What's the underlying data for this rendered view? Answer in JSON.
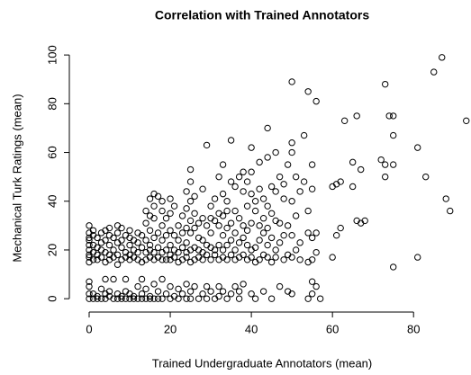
{
  "chart_data": {
    "type": "scatter",
    "title": "Correlation with Trained Annotators",
    "x_label": "Trained Undergraduate Annotators (mean)",
    "y_label": "Mechanical Turk Ratings (mean)",
    "color": "#000000",
    "xlim": [
      -4,
      93.5
    ],
    "ylim": [
      -4,
      103
    ],
    "xticks": [
      0,
      20,
      40,
      60,
      80
    ],
    "yticks": [
      0,
      20,
      40,
      60,
      80,
      100
    ],
    "x": [
      0,
      0,
      0,
      0,
      0,
      0,
      0,
      0,
      0,
      0,
      0,
      0,
      0,
      1,
      1,
      1,
      1,
      1,
      1,
      1,
      2,
      2,
      2,
      2,
      2,
      2,
      3,
      3,
      3,
      3,
      3,
      3,
      4,
      4,
      4,
      4,
      4,
      4,
      4,
      5,
      5,
      5,
      5,
      5,
      5,
      5,
      6,
      6,
      6,
      6,
      6,
      7,
      7,
      7,
      7,
      7,
      7,
      7,
      8,
      8,
      8,
      8,
      8,
      8,
      9,
      9,
      9,
      9,
      9,
      9,
      10,
      10,
      10,
      10,
      10,
      10,
      10,
      11,
      11,
      11,
      11,
      11,
      12,
      12,
      12,
      12,
      12,
      12,
      13,
      13,
      13,
      13,
      13,
      13,
      14,
      14,
      14,
      14,
      14,
      14,
      14,
      15,
      15,
      15,
      15,
      15,
      15,
      15,
      15,
      16,
      16,
      16,
      16,
      16,
      16,
      16,
      16,
      17,
      17,
      17,
      17,
      17,
      17,
      18,
      18,
      18,
      18,
      18,
      18,
      18,
      18,
      19,
      19,
      19,
      19,
      19,
      20,
      20,
      20,
      20,
      20,
      20,
      20,
      20,
      21,
      21,
      21,
      21,
      21,
      22,
      22,
      22,
      22,
      22,
      22,
      23,
      23,
      23,
      23,
      23,
      24,
      24,
      24,
      24,
      24,
      24,
      24,
      24,
      25,
      25,
      25,
      25,
      25,
      25,
      25,
      25,
      25,
      26,
      26,
      26,
      26,
      26,
      26,
      27,
      27,
      27,
      27,
      27,
      28,
      28,
      28,
      28,
      28,
      28,
      29,
      29,
      29,
      29,
      29,
      29,
      30,
      30,
      30,
      30,
      30,
      30,
      31,
      31,
      31,
      31,
      31,
      32,
      32,
      32,
      32,
      32,
      32,
      32,
      33,
      33,
      33,
      33,
      33,
      33,
      33,
      34,
      34,
      34,
      34,
      34,
      34,
      35,
      35,
      35,
      35,
      35,
      35,
      36,
      36,
      36,
      36,
      36,
      36,
      37,
      37,
      37,
      37,
      37,
      37,
      38,
      38,
      38,
      38,
      38,
      38,
      39,
      39,
      39,
      39,
      39,
      40,
      40,
      40,
      40,
      40,
      40,
      40,
      41,
      41,
      41,
      41,
      41,
      42,
      42,
      42,
      42,
      42,
      43,
      43,
      43,
      43,
      43,
      44,
      44,
      44,
      44,
      44,
      44,
      45,
      45,
      45,
      45,
      45,
      46,
      46,
      46,
      46,
      46,
      47,
      47,
      47,
      47,
      48,
      48,
      48,
      48,
      49,
      49,
      49,
      49,
      50,
      50,
      50,
      50,
      50,
      50,
      50,
      51,
      51,
      51,
      52,
      52,
      52,
      53,
      53,
      54,
      54,
      54,
      54,
      54,
      55,
      55,
      55,
      55,
      55,
      55,
      56,
      56,
      56,
      56,
      57,
      60,
      60,
      61,
      61,
      62,
      62,
      63,
      65,
      65,
      66,
      66,
      67,
      67,
      68,
      72,
      73,
      73,
      73,
      74,
      75,
      75,
      75,
      75,
      81,
      81,
      83,
      85,
      87,
      88,
      89,
      93
    ],
    "values": [
      0,
      2,
      5,
      7,
      15,
      17,
      18,
      20,
      22,
      24,
      25,
      27,
      30,
      0,
      2,
      16,
      19,
      22,
      26,
      28,
      0,
      1,
      16,
      18,
      21,
      25,
      0,
      4,
      17,
      20,
      23,
      27,
      0,
      2,
      8,
      15,
      19,
      24,
      28,
      1,
      3,
      16,
      18,
      22,
      26,
      29,
      0,
      8,
      17,
      20,
      25,
      0,
      2,
      14,
      18,
      23,
      27,
      30,
      0,
      1,
      16,
      21,
      24,
      29,
      0,
      3,
      8,
      17,
      19,
      26,
      0,
      2,
      16,
      18,
      22,
      25,
      28,
      0,
      1,
      17,
      20,
      24,
      0,
      5,
      16,
      19,
      23,
      27,
      0,
      2,
      8,
      15,
      21,
      26,
      0,
      4,
      16,
      19,
      24,
      31,
      36,
      0,
      1,
      17,
      20,
      22,
      28,
      34,
      41,
      0,
      6,
      16,
      19,
      25,
      33,
      38,
      43,
      0,
      3,
      17,
      21,
      27,
      42,
      0,
      8,
      16,
      19,
      24,
      30,
      36,
      40,
      2,
      16,
      20,
      26,
      33,
      0,
      5,
      16,
      18,
      22,
      28,
      35,
      41,
      1,
      17,
      20,
      26,
      38,
      0,
      4,
      15,
      19,
      24,
      30,
      2,
      16,
      21,
      27,
      34,
      0,
      6,
      17,
      19,
      23,
      29,
      37,
      44,
      0,
      3,
      15,
      20,
      27,
      32,
      40,
      48,
      53,
      5,
      16,
      21,
      29,
      35,
      42,
      0,
      17,
      20,
      25,
      31,
      2,
      16,
      19,
      24,
      33,
      45,
      0,
      5,
      18,
      22,
      30,
      63,
      3,
      16,
      21,
      27,
      33,
      38,
      0,
      18,
      20,
      32,
      41,
      1,
      5,
      16,
      22,
      30,
      35,
      50,
      3,
      17,
      20,
      26,
      34,
      43,
      55,
      0,
      16,
      22,
      29,
      36,
      40,
      2,
      18,
      24,
      31,
      48,
      65,
      5,
      16,
      20,
      27,
      36,
      46,
      0,
      3,
      17,
      23,
      33,
      50,
      6,
      18,
      25,
      30,
      44,
      52,
      16,
      22,
      28,
      38,
      48,
      2,
      17,
      20,
      31,
      43,
      62,
      52,
      0,
      15,
      21,
      36,
      40,
      16,
      24,
      30,
      45,
      56,
      3,
      18,
      27,
      33,
      41,
      17,
      22,
      29,
      38,
      58,
      70,
      0,
      15,
      25,
      35,
      46,
      17,
      20,
      32,
      44,
      60,
      5,
      23,
      31,
      50,
      16,
      26,
      41,
      47,
      3,
      18,
      30,
      55,
      2,
      17,
      26,
      40,
      60,
      64,
      89,
      20,
      34,
      50,
      16,
      23,
      44,
      48,
      67,
      0,
      15,
      27,
      36,
      85,
      2,
      7,
      16,
      25,
      45,
      55,
      5,
      19,
      27,
      81,
      0,
      46,
      17,
      26,
      47,
      29,
      48,
      73,
      46,
      56,
      75,
      32,
      53,
      31,
      32,
      57,
      50,
      55,
      88,
      75,
      13,
      55,
      67,
      75,
      17,
      62,
      50,
      93,
      99,
      41,
      36,
      73
    ]
  }
}
